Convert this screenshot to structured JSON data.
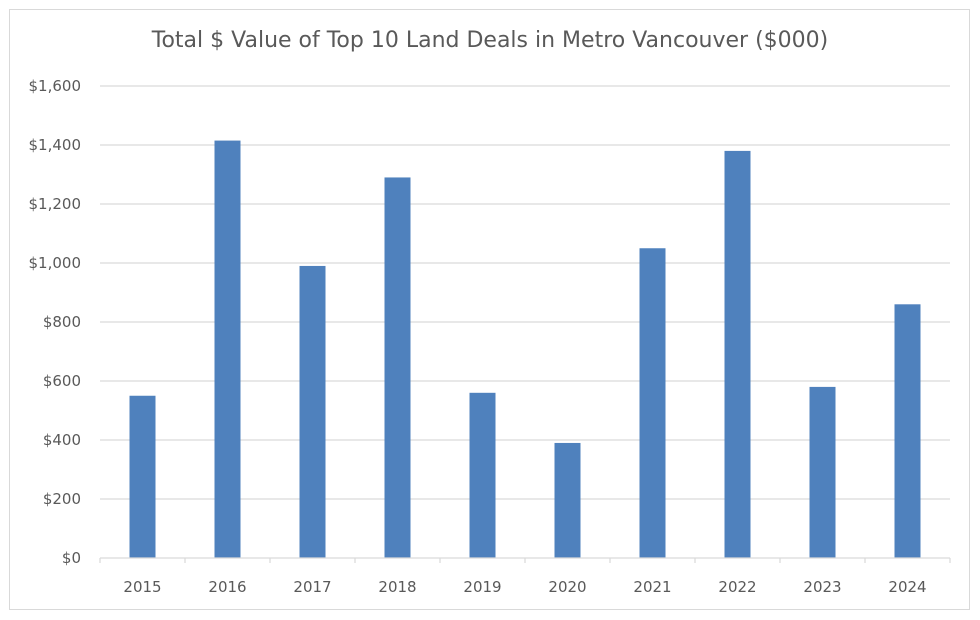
{
  "chart_data": {
    "type": "bar",
    "title": "Total $ Value of Top 10 Land Deals in Metro Vancouver ($000)",
    "xlabel": "",
    "ylabel": "",
    "categories": [
      "2015",
      "2016",
      "2017",
      "2018",
      "2019",
      "2020",
      "2021",
      "2022",
      "2023",
      "2024"
    ],
    "values": [
      550,
      1415,
      990,
      1290,
      560,
      390,
      1050,
      1380,
      580,
      860
    ],
    "ylim": [
      0,
      1600
    ],
    "yticks": [
      0,
      200,
      400,
      600,
      800,
      1000,
      1200,
      1400,
      1600
    ],
    "ytick_labels": [
      "$0",
      "$200",
      "$400",
      "$600",
      "$800",
      "$1,000",
      "$1,200",
      "$1,400",
      "$1,600"
    ],
    "grid": true,
    "legend": "none",
    "colors": {
      "bar": "#4f81bd",
      "grid": "#d9d9d9",
      "text": "#595959"
    }
  }
}
